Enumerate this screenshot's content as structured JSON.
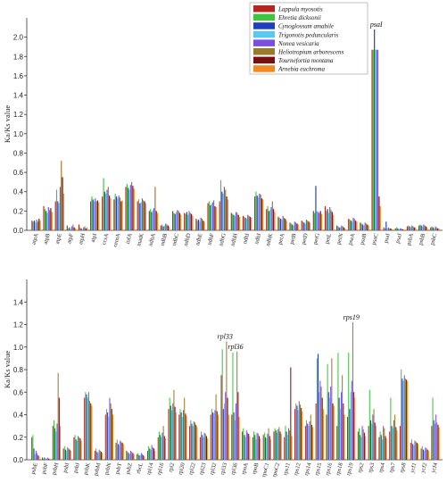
{
  "colors": [
    "#b5261e",
    "#3ec43e",
    "#1f3fbf",
    "#5ac8f0",
    "#7a4fe0",
    "#9a7a2e",
    "#7a0f0f",
    "#f08a1e"
  ],
  "chart_data": [
    {
      "type": "bar",
      "ylabel": "Ka/Ks value",
      "ylim": [
        0,
        2.2
      ],
      "yticks": [
        "0.0",
        "0.2",
        "0.4",
        "0.6",
        "0.8",
        "1.0",
        "1.2",
        "1.4",
        "1.6",
        "1.8",
        "2.0"
      ],
      "legend_position": "top-right",
      "series_names": [
        "Lappula myosotis",
        "Ehretia dicksonii",
        "Cynoglossum amabile",
        "Trigonotis peduncularis",
        "Nonea vesicaria",
        "Heliotropium arborescens",
        "Tournefortia montana",
        "Arnebia euchroma"
      ],
      "annotations": [
        {
          "category": "psaC",
          "text": "psaI"
        }
      ],
      "categories": [
        "atpA",
        "atpB",
        "atpE",
        "atpF",
        "atpH",
        "atpI",
        "ccsA",
        "cemA",
        "infA",
        "matK",
        "ndhA",
        "ndhB",
        "ndhC",
        "ndhD",
        "ndhE",
        "ndhF",
        "ndhG",
        "ndhH",
        "ndhI",
        "ndhJ",
        "ndhK",
        "petA",
        "petB",
        "petD",
        "petG",
        "petL",
        "petN",
        "psaA",
        "psaB",
        "psaC",
        "psaI",
        "psaJ",
        "psbA",
        "psbB",
        "psbC"
      ],
      "values": [
        [
          0.1,
          0.09,
          0.1,
          0.08,
          0.11,
          0.09,
          0.12,
          0.1
        ],
        [
          0.25,
          0.22,
          0.2,
          0.18,
          0.24,
          0.21,
          0.23,
          0.19
        ],
        [
          0.3,
          0.42,
          0.3,
          0.28,
          0.45,
          0.72,
          0.55,
          0.38
        ],
        [
          0.05,
          0.02,
          0.03,
          0.01,
          0.04,
          0.06,
          0.03,
          0.02
        ],
        [
          0.06,
          0.03,
          0.02,
          0.01,
          0.03,
          0.04,
          0.02,
          0.03
        ],
        [
          0.3,
          0.35,
          0.32,
          0.3,
          0.33,
          0.3,
          0.31,
          0.29
        ],
        [
          0.35,
          0.54,
          0.4,
          0.38,
          0.42,
          0.45,
          0.36,
          0.33
        ],
        [
          0.32,
          0.38,
          0.35,
          0.33,
          0.36,
          0.34,
          0.3,
          0.31
        ],
        [
          0.45,
          0.48,
          0.44,
          0.42,
          0.47,
          0.5,
          0.46,
          0.43
        ],
        [
          0.3,
          0.32,
          0.28,
          0.29,
          0.33,
          0.31,
          0.3,
          0.28
        ],
        [
          0.2,
          0.22,
          0.19,
          0.21,
          0.23,
          0.45,
          0.2,
          0.18
        ],
        [
          0.05,
          0.06,
          0.04,
          0.05,
          0.07,
          0.06,
          0.05,
          0.04
        ],
        [
          0.2,
          0.18,
          0.17,
          0.19,
          0.21,
          0.2,
          0.18,
          0.16
        ],
        [
          0.18,
          0.17,
          0.19,
          0.16,
          0.2,
          0.18,
          0.17,
          0.15
        ],
        [
          0.12,
          0.1,
          0.11,
          0.09,
          0.13,
          0.12,
          0.1,
          0.09
        ],
        [
          0.28,
          0.3,
          0.26,
          0.27,
          0.29,
          0.31,
          0.25,
          0.24
        ],
        [
          0.3,
          0.52,
          0.4,
          0.38,
          0.45,
          0.42,
          0.35,
          0.32
        ],
        [
          0.18,
          0.17,
          0.16,
          0.15,
          0.19,
          0.18,
          0.16,
          0.14
        ],
        [
          0.15,
          0.14,
          0.13,
          0.12,
          0.16,
          0.15,
          0.14,
          0.13
        ],
        [
          0.35,
          0.4,
          0.36,
          0.34,
          0.38,
          0.37,
          0.33,
          0.32
        ],
        [
          0.22,
          0.25,
          0.2,
          0.21,
          0.24,
          0.3,
          0.22,
          0.19
        ],
        [
          0.14,
          0.13,
          0.12,
          0.11,
          0.15,
          0.13,
          0.12,
          0.1
        ],
        [
          0.08,
          0.07,
          0.06,
          0.05,
          0.09,
          0.08,
          0.07,
          0.06
        ],
        [
          0.1,
          0.09,
          0.08,
          0.07,
          0.11,
          0.1,
          0.09,
          0.08
        ],
        [
          0.2,
          0.18,
          0.46,
          0.2,
          0.19,
          0.18,
          0.2,
          0.17
        ],
        [
          0.25,
          0.2,
          0.22,
          0.18,
          0.24,
          0.21,
          0.19,
          0.16
        ],
        [
          0.05,
          0.04,
          0.03,
          0.03,
          0.05,
          0.04,
          0.03,
          0.02
        ],
        [
          0.12,
          0.11,
          0.1,
          0.09,
          0.13,
          0.12,
          0.1,
          0.09
        ],
        [
          0.08,
          0.07,
          0.06,
          0.05,
          0.08,
          0.07,
          0.06,
          0.05
        ],
        [
          1.87,
          1.87,
          2.08,
          1.87,
          1.87,
          1.87,
          0.35,
          0.25
        ],
        [
          0.03,
          0.02,
          0.09,
          0.02,
          0.03,
          0.02,
          0.02,
          0.01
        ],
        [
          0.02,
          0.03,
          0.02,
          0.01,
          0.02,
          0.02,
          0.01,
          0.01
        ],
        [
          0.04,
          0.05,
          0.04,
          0.03,
          0.05,
          0.04,
          0.03,
          0.03
        ],
        [
          0.05,
          0.06,
          0.05,
          0.04,
          0.06,
          0.05,
          0.04,
          0.03
        ],
        [
          0.03,
          0.04,
          0.03,
          0.02,
          0.04,
          0.03,
          0.02,
          0.02
        ]
      ]
    },
    {
      "type": "bar",
      "ylabel": "Ka/Ks value",
      "ylim": [
        0,
        1.6
      ],
      "yticks": [
        "0.0",
        "0.2",
        "0.4",
        "0.6",
        "0.8",
        "1.0",
        "1.2",
        "1.4"
      ],
      "annotations": [
        {
          "category": "rpl33",
          "text": "rpl33"
        },
        {
          "category": "rpl36",
          "text": "rpl36"
        },
        {
          "category": "rps19",
          "text": "rps19"
        }
      ],
      "categories": [
        "psbE",
        "psbF",
        "psbH",
        "psbI",
        "psbJ",
        "psbK",
        "psbM",
        "psbN",
        "psbT",
        "psbZ",
        "rbcL",
        "rpl14",
        "rpl16",
        "rpl2",
        "rpl20",
        "rpl22",
        "rpl23",
        "rpl32",
        "rpl33",
        "rpl36",
        "rpoA",
        "rpoB",
        "rpoC1",
        "rpoC2",
        "rps11",
        "rps12",
        "rps14",
        "rps15",
        "rps16",
        "rps18",
        "rps19",
        "rps2",
        "rps3",
        "rps4",
        "rps7",
        "rps8",
        "ycf1",
        "ycf2",
        "ycf4"
      ],
      "values": [
        [
          0.2,
          0.22,
          0.1,
          0.05,
          0.08,
          0.06,
          0.04,
          0.03
        ],
        [
          0.02,
          0.01,
          0.02,
          0.01,
          0.01,
          0.02,
          0.01,
          0.01
        ],
        [
          0.3,
          0.35,
          0.28,
          0.25,
          0.32,
          0.77,
          0.55,
          0.3
        ],
        [
          0.1,
          0.12,
          0.09,
          0.08,
          0.11,
          0.1,
          0.09,
          0.08
        ],
        [
          0.2,
          0.22,
          0.18,
          0.17,
          0.21,
          0.2,
          0.19,
          0.17
        ],
        [
          0.55,
          0.6,
          0.58,
          0.55,
          0.6,
          0.52,
          0.5,
          0.48
        ],
        [
          0.08,
          0.1,
          0.07,
          0.06,
          0.09,
          0.08,
          0.07,
          0.06
        ],
        [
          0.4,
          0.45,
          0.42,
          0.38,
          0.55,
          0.5,
          0.45,
          0.4
        ],
        [
          0.15,
          0.18,
          0.14,
          0.13,
          0.17,
          0.16,
          0.15,
          0.14
        ],
        [
          0.08,
          0.07,
          0.06,
          0.05,
          0.08,
          0.07,
          0.06,
          0.05
        ],
        [
          0.05,
          0.06,
          0.04,
          0.04,
          0.06,
          0.05,
          0.04,
          0.03
        ],
        [
          0.08,
          0.12,
          0.1,
          0.09,
          0.13,
          0.11,
          0.1,
          0.08
        ],
        [
          0.2,
          0.25,
          0.22,
          0.2,
          0.24,
          0.3,
          0.21,
          0.19
        ],
        [
          0.45,
          0.55,
          0.48,
          0.44,
          0.5,
          0.62,
          0.47,
          0.42
        ],
        [
          0.4,
          0.45,
          0.42,
          0.38,
          0.44,
          0.55,
          0.41,
          0.39
        ],
        [
          0.3,
          0.35,
          0.32,
          0.3,
          0.34,
          0.33,
          0.31,
          0.29
        ],
        [
          0.2,
          0.25,
          0.22,
          0.2,
          0.24,
          0.23,
          0.21,
          0.19
        ],
        [
          0.4,
          0.45,
          0.42,
          0.41,
          0.44,
          0.58,
          0.43,
          0.4
        ],
        [
          0.75,
          0.98,
          0.45,
          0.5,
          0.6,
          1.05,
          0.55,
          0.4
        ],
        [
          0.4,
          0.95,
          0.42,
          0.35,
          0.5,
          0.96,
          0.6,
          0.38
        ],
        [
          0.25,
          0.28,
          0.22,
          0.2,
          0.26,
          0.24,
          0.23,
          0.21
        ],
        [
          0.2,
          0.25,
          0.22,
          0.18,
          0.24,
          0.23,
          0.21,
          0.19
        ],
        [
          0.22,
          0.24,
          0.2,
          0.19,
          0.23,
          0.28,
          0.21,
          0.18
        ],
        [
          0.25,
          0.28,
          0.26,
          0.24,
          0.27,
          0.29,
          0.25,
          0.23
        ],
        [
          0.2,
          0.3,
          0.25,
          0.22,
          0.28,
          0.26,
          0.82,
          0.21
        ],
        [
          0.45,
          0.5,
          0.48,
          0.44,
          0.52,
          0.49,
          0.46,
          0.43
        ],
        [
          0.3,
          0.35,
          0.32,
          0.3,
          0.34,
          0.4,
          0.31,
          0.29
        ],
        [
          0.5,
          0.9,
          0.94,
          0.6,
          0.7,
          0.65,
          0.55,
          0.45
        ],
        [
          0.4,
          0.85,
          0.6,
          0.55,
          0.65,
          0.9,
          0.5,
          0.48
        ],
        [
          0.3,
          0.95,
          0.55,
          0.45,
          0.6,
          0.75,
          0.5,
          0.4
        ],
        [
          0.38,
          0.95,
          0.45,
          0.6,
          0.7,
          1.22,
          0.6,
          0.55
        ],
        [
          0.25,
          0.28,
          0.22,
          0.2,
          0.3,
          0.27,
          0.24,
          0.21
        ],
        [
          0.3,
          0.62,
          0.35,
          0.32,
          0.4,
          0.45,
          0.33,
          0.3
        ],
        [
          0.2,
          0.25,
          0.22,
          0.18,
          0.3,
          0.28,
          0.21,
          0.19
        ],
        [
          0.25,
          0.55,
          0.3,
          0.28,
          0.35,
          0.4,
          0.29,
          0.26
        ],
        [
          0.3,
          0.8,
          0.72,
          0.7,
          0.75,
          0.72,
          0.71,
          0.7
        ],
        [
          0.15,
          0.18,
          0.14,
          0.13,
          0.17,
          0.16,
          0.15,
          0.14
        ],
        [
          0.1,
          0.12,
          0.09,
          0.08,
          0.11,
          0.1,
          0.09,
          0.08
        ],
        [
          0.3,
          0.55,
          0.35,
          0.32,
          0.4,
          0.33,
          0.31,
          0.29
        ]
      ]
    }
  ]
}
